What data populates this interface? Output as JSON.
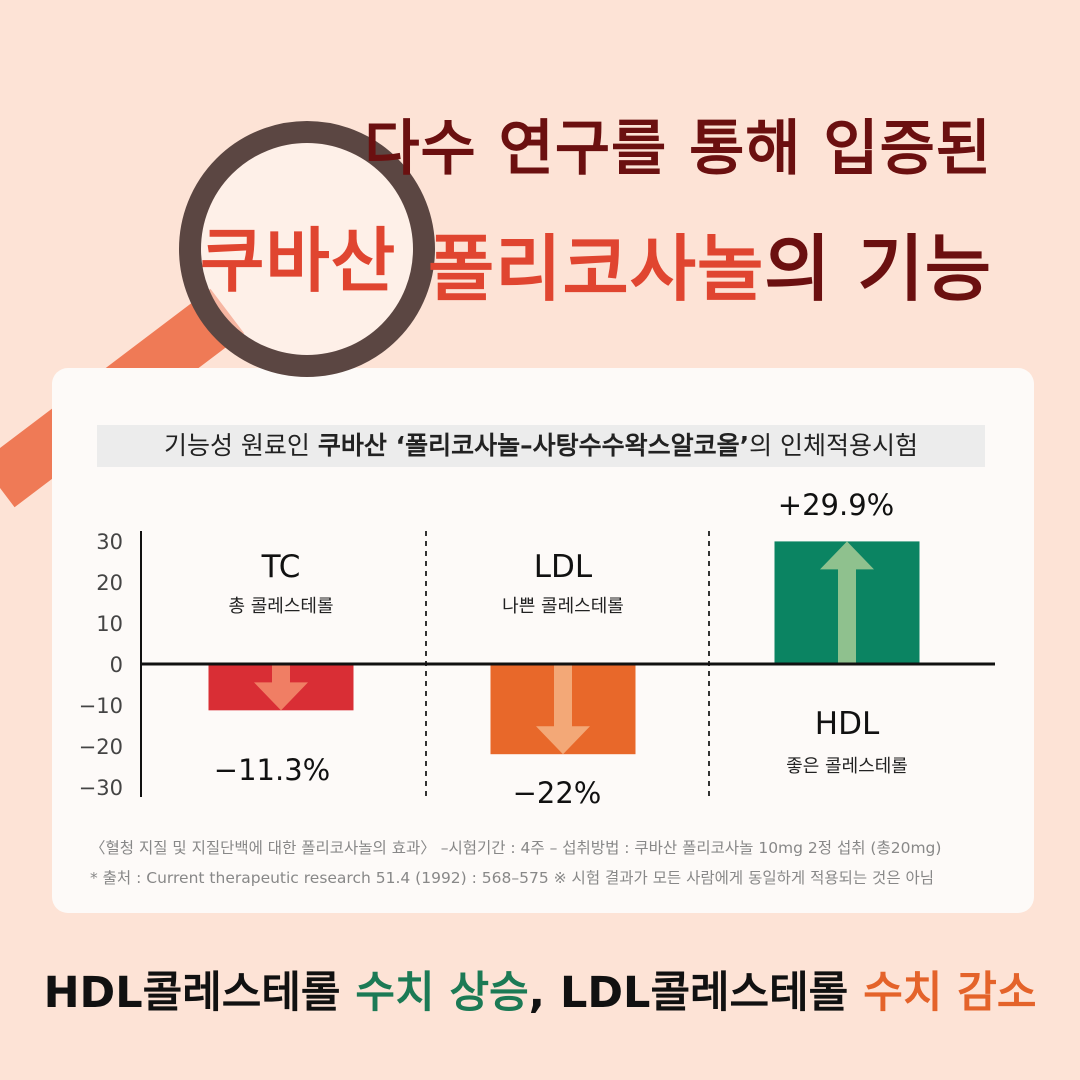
{
  "header": {
    "line1": "다수 연구를 통해 입증된",
    "brand": "쿠바산",
    "line2_accent": "폴리코사놀",
    "line2_rest": "의 기능"
  },
  "card": {
    "subtitle_prefix": "기능성 원료인 ",
    "subtitle_bold": "쿠바산 ‘폴리코사놀–사탕수수왁스알코올’",
    "subtitle_suffix": "의 인체적용시험",
    "note1": "〈혈청 지질 및 지질단백에 대한 폴리코사놀의 효과〉 –시험기간 : 4주  – 섭취방법 : 쿠바산 폴리코사놀 10mg 2정 섭취 (총20mg)",
    "note2": "* 출처 : Current therapeutic research 51.4 (1992) : 568–575     ※ 시험 결과가 모든 사람에게 동일하게 적용되는 것은 아님"
  },
  "chart_data": {
    "type": "bar",
    "categories": [
      "TC",
      "LDL",
      "HDL"
    ],
    "category_sublabels": [
      "총 콜레스테롤",
      "나쁜 콜레스테롤",
      "좋은 콜레스테롤"
    ],
    "values": [
      -11.3,
      -22,
      29.9
    ],
    "value_labels": [
      "−11.3%",
      "−22%",
      "+29.9%"
    ],
    "bar_colors": [
      "#d92e35",
      "#e8682a",
      "#0b8462"
    ],
    "arrow_colors": [
      "#f07e64",
      "#f3a877",
      "#8fc18e"
    ],
    "ylim": [
      -30,
      30
    ],
    "yticks": [
      30,
      20,
      10,
      0,
      -10,
      -20,
      -30
    ],
    "ytick_labels": [
      "30",
      "20",
      "10",
      "0",
      "−10",
      "−20",
      "−30"
    ],
    "grid": false
  },
  "bottom": {
    "part1": "HDL콜레스테롤 ",
    "part2": "수치 상승",
    "part3": ", LDL콜레스테롤 ",
    "part4": "수치 감소"
  }
}
